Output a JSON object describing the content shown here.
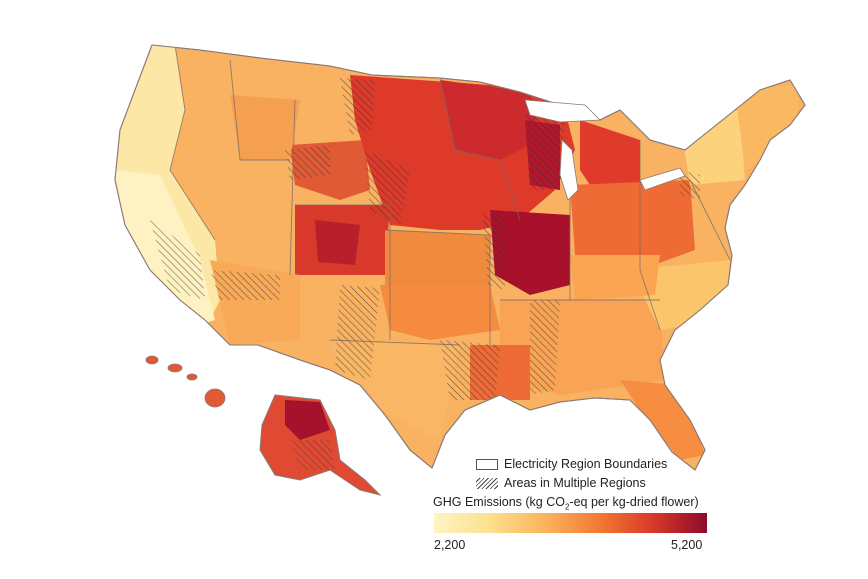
{
  "legend": {
    "boundaries_label": "Electricity Region Boundaries",
    "multiple_label": "Areas in Multiple Regions",
    "colorbar_title_prefix": "GHG Emissions (kg CO",
    "colorbar_title_sub": "2",
    "colorbar_title_suffix": "-eq per kg-dried flower)",
    "min_label": "2,200",
    "max_label": "5,200",
    "min_value": 2200,
    "max_value": 5200
  },
  "colors": {
    "low": "#fdf4c4",
    "mid": "#f37b35",
    "high": "#8e0a2b",
    "border": "#7a6a66"
  }
}
